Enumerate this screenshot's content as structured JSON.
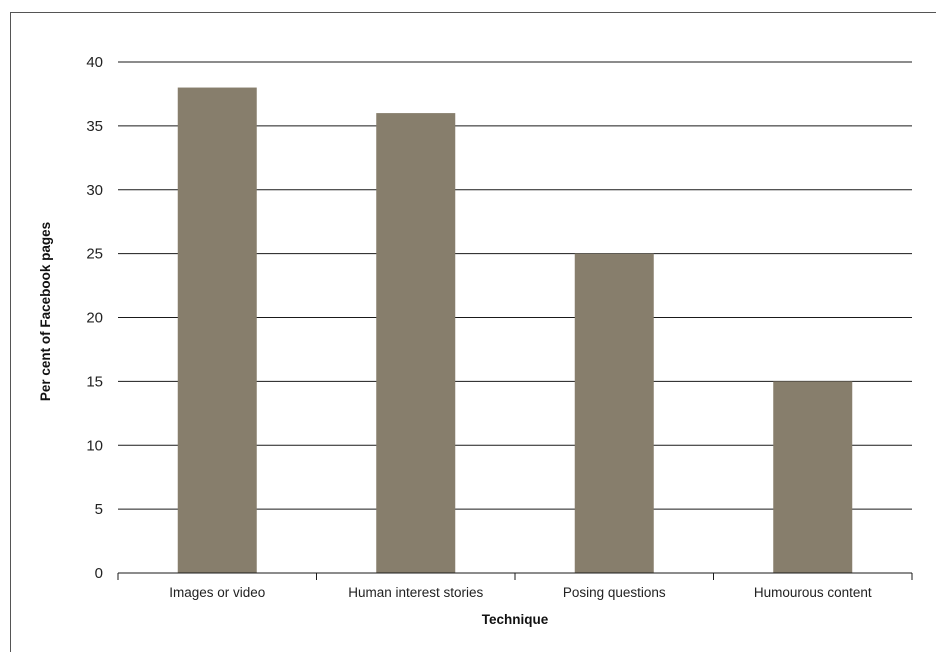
{
  "chart_data": {
    "type": "bar",
    "categories": [
      "Images or video",
      "Human interest stories",
      "Posing questions",
      "Humourous content"
    ],
    "series": [
      {
        "values": [
          38,
          36,
          25,
          15
        ],
        "color": "#877e6c"
      }
    ],
    "xlabel": "Technique",
    "ylabel": "Per cent of Facebook pages",
    "ylim": [
      0,
      40
    ],
    "yticks": [
      "0",
      "5",
      "10",
      "15",
      "20",
      "25",
      "30",
      "35",
      "40"
    ],
    "grid": true,
    "legend": "none"
  }
}
